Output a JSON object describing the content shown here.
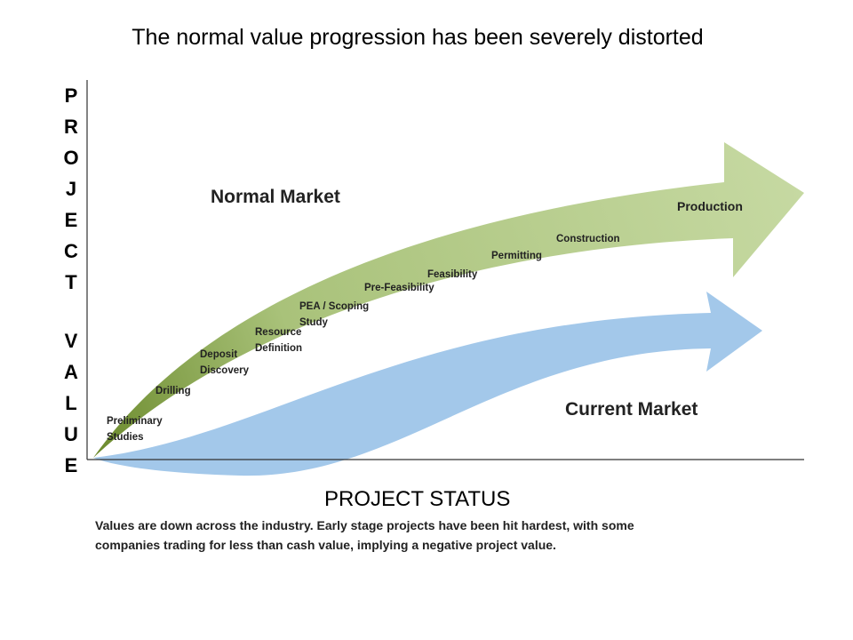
{
  "title": "The normal value progression has been severely distorted",
  "y_axis_label": [
    "PROJECT",
    "VALUE"
  ],
  "x_axis_label": "PROJECT STATUS",
  "normal_market": {
    "label": "Normal Market",
    "stages": [
      "Preliminary\nStudies",
      "Drilling",
      "Deposit\nDiscovery",
      "Resource\nDefinition",
      "PEA / Scoping\nStudy",
      "Pre-Feasibility",
      "Feasibility",
      "Permitting",
      "Construction",
      "Production"
    ]
  },
  "current_market": {
    "label": "Current Market"
  },
  "caption": "Values are down across the industry. Early stage projects have been hit hardest, with some\ncompanies trading for less than cash value, implying a negative project value."
}
